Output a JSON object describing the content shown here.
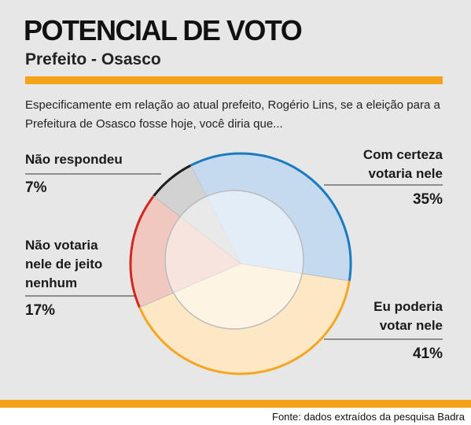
{
  "title": "POTENCIAL DE VOTO",
  "subtitle": "Prefeito - Osasco",
  "question": "Especificamente em relação ao atual prefeito, Rogério Lins, se a eleição para a Prefeitura de Osasco fosse hoje, você diria que...",
  "chart_data": {
    "type": "pie",
    "categories": [
      "Com certeza votaria nele",
      "Eu poderia votar nele",
      "Não votaria nele de jeito nenhum",
      "Não respondeu"
    ],
    "values": [
      35,
      41,
      17,
      7
    ],
    "value_labels": [
      "35%",
      "41%",
      "17%",
      "7%"
    ],
    "colors": [
      "#1b7bc1",
      "#f5a623",
      "#d3261c",
      "#1e1e1e"
    ],
    "fills": [
      "#c6daef",
      "#fde8c6",
      "#f1c8bf",
      "#d2d2d2"
    ]
  },
  "source": "Fonte: dados extraídos da pesquisa Badra"
}
